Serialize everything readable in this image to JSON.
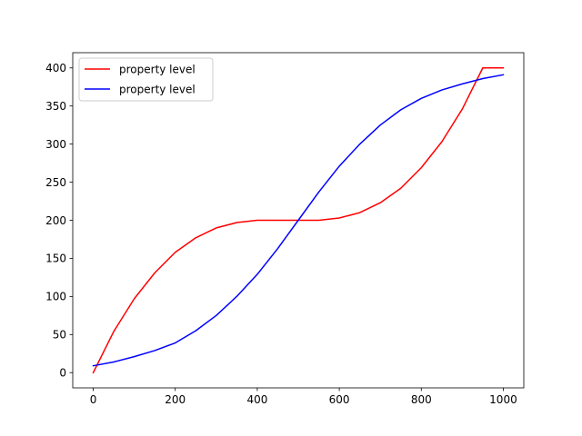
{
  "chart_data": {
    "type": "line",
    "title": "",
    "xlabel": "",
    "ylabel": "",
    "xlim": [
      -50,
      1050
    ],
    "ylim": [
      -20,
      420
    ],
    "x_ticks": [
      0,
      200,
      400,
      600,
      800,
      1000
    ],
    "x_tick_labels": [
      "0",
      "200",
      "400",
      "600",
      "800",
      "1000"
    ],
    "y_ticks": [
      0,
      50,
      100,
      150,
      200,
      250,
      300,
      350,
      400
    ],
    "y_tick_labels": [
      "0",
      "50",
      "100",
      "150",
      "200",
      "250",
      "300",
      "350",
      "400"
    ],
    "grid": false,
    "legend_position": "upper-left",
    "series": [
      {
        "name": "property level",
        "color": "#ff0000",
        "x": [
          0,
          50,
          100,
          150,
          200,
          250,
          300,
          350,
          400,
          450,
          500,
          550,
          600,
          650,
          700,
          750,
          800,
          850,
          900,
          950,
          1000
        ],
        "y": [
          0,
          54,
          97,
          131,
          158,
          177,
          190,
          197,
          200,
          200,
          200,
          200,
          203,
          210,
          223,
          242,
          269,
          303,
          346,
          400,
          400
        ]
      },
      {
        "name": "property level",
        "color": "#0000ff",
        "x": [
          0,
          50,
          100,
          150,
          200,
          250,
          300,
          350,
          400,
          450,
          500,
          550,
          600,
          650,
          700,
          750,
          800,
          850,
          900,
          950,
          1000
        ],
        "y": [
          9,
          14,
          21,
          29,
          39,
          55,
          75,
          100,
          129,
          163,
          200,
          237,
          271,
          300,
          325,
          345,
          360,
          371,
          379,
          386,
          391
        ]
      }
    ]
  }
}
